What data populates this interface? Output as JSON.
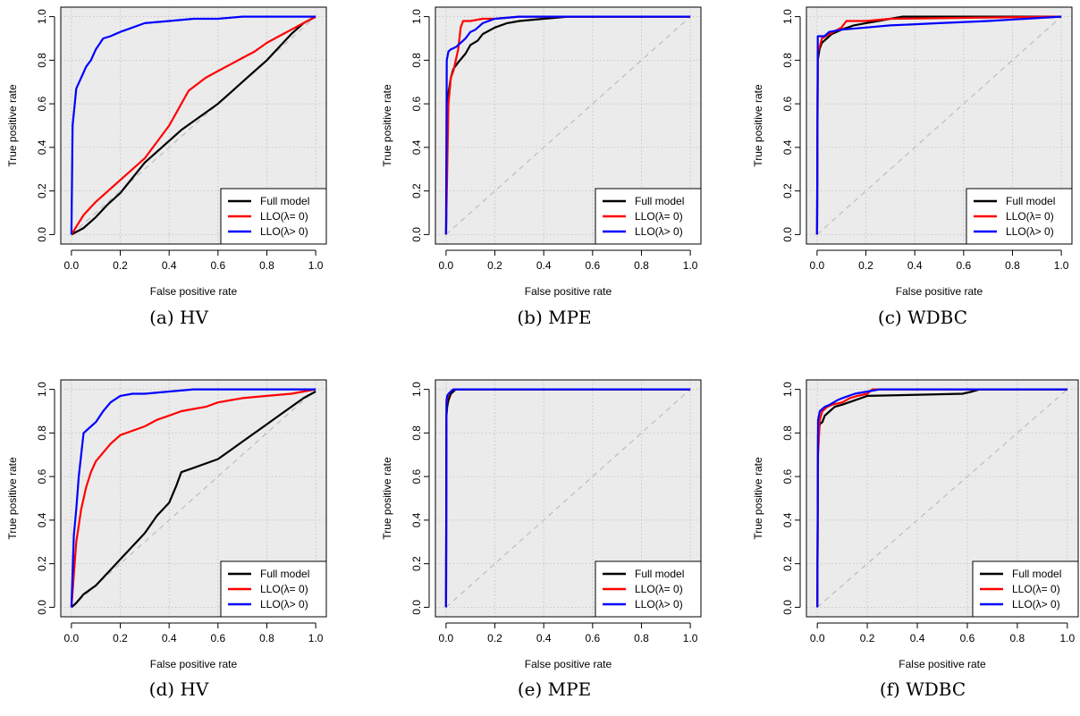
{
  "colors": {
    "panel_bg": "#ebebeb",
    "grid": "#bdbdbd",
    "diagonal": "#bdbdbd",
    "full_model": "#000000",
    "llo_zero": "#ff0000",
    "llo_pos": "#0000ff"
  },
  "chart_data": [
    {
      "type": "line",
      "caption": "(a) HV",
      "xlabel": "False positive rate",
      "ylabel": "True positive rate",
      "xlim": [
        0,
        1
      ],
      "ylim": [
        0,
        1
      ],
      "ticks": [
        "0.0",
        "0.2",
        "0.4",
        "0.6",
        "0.8",
        "1.0"
      ],
      "grid": true,
      "legend_position": "bottom-right",
      "series": [
        {
          "name": "Full model",
          "color": "#000000",
          "x": [
            0,
            0.05,
            0.1,
            0.15,
            0.2,
            0.25,
            0.3,
            0.35,
            0.4,
            0.45,
            0.5,
            0.55,
            0.6,
            0.65,
            0.7,
            0.75,
            0.8,
            0.85,
            0.9,
            0.95,
            1
          ],
          "y": [
            0,
            0.03,
            0.08,
            0.14,
            0.19,
            0.26,
            0.33,
            0.38,
            0.43,
            0.48,
            0.52,
            0.56,
            0.6,
            0.65,
            0.7,
            0.75,
            0.8,
            0.86,
            0.92,
            0.97,
            1
          ]
        },
        {
          "name": "LLO(λ= 0)",
          "color": "#ff0000",
          "x": [
            0,
            0.05,
            0.1,
            0.15,
            0.2,
            0.3,
            0.4,
            0.48,
            0.55,
            0.6,
            0.65,
            0.7,
            0.75,
            0.8,
            0.85,
            0.9,
            0.95,
            1
          ],
          "y": [
            0,
            0.09,
            0.15,
            0.2,
            0.25,
            0.35,
            0.5,
            0.66,
            0.72,
            0.75,
            0.78,
            0.81,
            0.84,
            0.88,
            0.91,
            0.94,
            0.97,
            1
          ]
        },
        {
          "name": "LLO(λ> 0)",
          "color": "#0000ff",
          "x": [
            0,
            0.005,
            0.02,
            0.04,
            0.06,
            0.08,
            0.1,
            0.13,
            0.16,
            0.2,
            0.25,
            0.3,
            0.4,
            0.5,
            0.6,
            0.7,
            0.8,
            1
          ],
          "y": [
            0,
            0.5,
            0.67,
            0.72,
            0.77,
            0.8,
            0.85,
            0.9,
            0.91,
            0.93,
            0.95,
            0.97,
            0.98,
            0.99,
            0.99,
            1,
            1,
            1
          ]
        }
      ]
    },
    {
      "type": "line",
      "caption": "(b) MPE",
      "xlabel": "False positive rate",
      "ylabel": "True positive rate",
      "xlim": [
        0,
        1
      ],
      "ylim": [
        0,
        1
      ],
      "ticks": [
        "0.0",
        "0.2",
        "0.4",
        "0.6",
        "0.8",
        "1.0"
      ],
      "grid": true,
      "legend_position": "bottom-right",
      "series": [
        {
          "name": "Full model",
          "color": "#000000",
          "x": [
            0,
            0.005,
            0.01,
            0.02,
            0.03,
            0.05,
            0.08,
            0.1,
            0.13,
            0.15,
            0.2,
            0.25,
            0.3,
            0.4,
            0.5,
            0.6,
            1
          ],
          "y": [
            0,
            0.5,
            0.65,
            0.72,
            0.76,
            0.79,
            0.83,
            0.87,
            0.89,
            0.92,
            0.95,
            0.97,
            0.98,
            0.99,
            1,
            1,
            1
          ]
        },
        {
          "name": "LLO(λ= 0)",
          "color": "#ff0000",
          "x": [
            0,
            0.005,
            0.01,
            0.02,
            0.03,
            0.04,
            0.05,
            0.06,
            0.07,
            0.1,
            0.15,
            0.2,
            0.3,
            1
          ],
          "y": [
            0,
            0.3,
            0.6,
            0.72,
            0.75,
            0.8,
            0.85,
            0.95,
            0.98,
            0.98,
            0.99,
            0.99,
            1,
            1
          ]
        },
        {
          "name": "LLO(λ> 0)",
          "color": "#0000ff",
          "x": [
            0,
            0.003,
            0.01,
            0.02,
            0.04,
            0.06,
            0.08,
            0.1,
            0.12,
            0.15,
            0.2,
            0.3,
            1
          ],
          "y": [
            0,
            0.8,
            0.84,
            0.85,
            0.86,
            0.88,
            0.9,
            0.93,
            0.94,
            0.97,
            0.99,
            1,
            1
          ]
        }
      ]
    },
    {
      "type": "line",
      "caption": "(c) WDBC",
      "xlabel": "False positive rate",
      "ylabel": "True positive rate",
      "xlim": [
        0,
        1
      ],
      "ylim": [
        0,
        1
      ],
      "ticks": [
        "0.0",
        "0.2",
        "0.4",
        "0.6",
        "0.8",
        "1.0"
      ],
      "grid": true,
      "legend_position": "bottom-right",
      "series": [
        {
          "name": "Full model",
          "color": "#000000",
          "x": [
            0,
            0.003,
            0.01,
            0.02,
            0.04,
            0.06,
            0.1,
            0.15,
            0.2,
            0.25,
            0.3,
            0.35,
            1
          ],
          "y": [
            0,
            0.8,
            0.85,
            0.88,
            0.9,
            0.92,
            0.94,
            0.96,
            0.97,
            0.98,
            0.99,
            1,
            1
          ]
        },
        {
          "name": "LLO(λ= 0)",
          "color": "#ff0000",
          "x": [
            0,
            0.003,
            0.01,
            0.02,
            0.05,
            0.1,
            0.12,
            0.2,
            0.3,
            1
          ],
          "y": [
            0,
            0.84,
            0.86,
            0.9,
            0.92,
            0.95,
            0.98,
            0.98,
            0.99,
            1
          ]
        },
        {
          "name": "LLO(λ> 0)",
          "color": "#0000ff",
          "x": [
            0,
            0.003,
            0.03,
            0.05,
            0.1,
            0.2,
            0.3,
            0.5,
            0.7,
            1
          ],
          "y": [
            0,
            0.91,
            0.91,
            0.93,
            0.94,
            0.95,
            0.96,
            0.97,
            0.98,
            1
          ]
        }
      ]
    },
    {
      "type": "line",
      "caption": "(d) HV",
      "xlabel": "False positive rate",
      "ylabel": "True positive rate",
      "xlim": [
        0,
        1
      ],
      "ylim": [
        0,
        1
      ],
      "ticks": [
        "0.0",
        "0.2",
        "0.4",
        "0.6",
        "0.8",
        "1.0"
      ],
      "grid": true,
      "legend_position": "bottom-right",
      "series": [
        {
          "name": "Full model",
          "color": "#000000",
          "x": [
            0,
            0.02,
            0.05,
            0.1,
            0.15,
            0.2,
            0.25,
            0.3,
            0.35,
            0.4,
            0.43,
            0.45,
            0.5,
            0.55,
            0.6,
            0.65,
            0.7,
            0.75,
            0.8,
            0.85,
            0.9,
            0.95,
            1
          ],
          "y": [
            0,
            0.02,
            0.06,
            0.1,
            0.16,
            0.22,
            0.28,
            0.34,
            0.42,
            0.48,
            0.56,
            0.62,
            0.64,
            0.66,
            0.68,
            0.72,
            0.76,
            0.8,
            0.84,
            0.88,
            0.92,
            0.96,
            0.99
          ]
        },
        {
          "name": "LLO(λ= 0)",
          "color": "#ff0000",
          "x": [
            0,
            0.01,
            0.02,
            0.04,
            0.06,
            0.08,
            0.1,
            0.13,
            0.16,
            0.2,
            0.25,
            0.3,
            0.35,
            0.4,
            0.45,
            0.5,
            0.55,
            0.6,
            0.7,
            0.8,
            0.9,
            0.95,
            1
          ],
          "y": [
            0,
            0.15,
            0.3,
            0.45,
            0.55,
            0.62,
            0.67,
            0.71,
            0.75,
            0.79,
            0.81,
            0.83,
            0.86,
            0.88,
            0.9,
            0.91,
            0.92,
            0.94,
            0.96,
            0.97,
            0.98,
            0.99,
            1
          ]
        },
        {
          "name": "LLO(λ> 0)",
          "color": "#0000ff",
          "x": [
            0,
            0.01,
            0.02,
            0.03,
            0.04,
            0.05,
            0.07,
            0.1,
            0.13,
            0.16,
            0.2,
            0.25,
            0.3,
            0.4,
            0.5,
            0.6,
            0.8,
            1
          ],
          "y": [
            0,
            0.33,
            0.45,
            0.6,
            0.7,
            0.8,
            0.82,
            0.85,
            0.9,
            0.94,
            0.97,
            0.98,
            0.98,
            0.99,
            1,
            1,
            1,
            1
          ]
        }
      ]
    },
    {
      "type": "line",
      "caption": "(e) MPE",
      "xlabel": "False positive rate",
      "ylabel": "True positive rate",
      "xlim": [
        0,
        1
      ],
      "ylim": [
        0,
        1
      ],
      "ticks": [
        "0.0",
        "0.2",
        "0.4",
        "0.6",
        "0.8",
        "1.0"
      ],
      "grid": true,
      "legend_position": "bottom-right",
      "series": [
        {
          "name": "Full model",
          "color": "#000000",
          "x": [
            0,
            0.002,
            0.005,
            0.01,
            0.02,
            0.03,
            0.04,
            1
          ],
          "y": [
            0,
            0.88,
            0.92,
            0.95,
            0.98,
            0.99,
            1,
            1
          ]
        },
        {
          "name": "LLO(λ= 0)",
          "color": "#ff0000",
          "x": [
            0,
            0.002,
            0.005,
            0.01,
            0.02,
            0.03,
            1
          ],
          "y": [
            0,
            0.93,
            0.96,
            0.98,
            0.99,
            1,
            1
          ]
        },
        {
          "name": "LLO(λ> 0)",
          "color": "#0000ff",
          "x": [
            0,
            0.002,
            0.005,
            0.01,
            0.02,
            0.03,
            1
          ],
          "y": [
            0,
            0.95,
            0.97,
            0.98,
            0.99,
            1,
            1
          ]
        }
      ]
    },
    {
      "type": "line",
      "caption": "(f) WDBC",
      "xlabel": "False positive rate",
      "ylabel": "True positive rate",
      "xlim": [
        0,
        1
      ],
      "ylim": [
        0,
        1
      ],
      "ticks": [
        "0.0",
        "0.2",
        "0.4",
        "0.6",
        "0.8",
        "1.0"
      ],
      "grid": true,
      "legend_position": "bottom-right",
      "series": [
        {
          "name": "Full model",
          "color": "#000000",
          "x": [
            0,
            0.003,
            0.01,
            0.02,
            0.03,
            0.05,
            0.07,
            0.1,
            0.15,
            0.2,
            0.58,
            0.62,
            0.65,
            0.7,
            1
          ],
          "y": [
            0,
            0.8,
            0.84,
            0.85,
            0.88,
            0.9,
            0.92,
            0.93,
            0.95,
            0.97,
            0.98,
            0.99,
            1,
            1,
            1
          ]
        },
        {
          "name": "LLO(λ= 0)",
          "color": "#ff0000",
          "x": [
            0,
            0.003,
            0.01,
            0.02,
            0.04,
            0.06,
            0.1,
            0.13,
            0.16,
            0.2,
            0.22,
            1
          ],
          "y": [
            0,
            0.7,
            0.86,
            0.9,
            0.92,
            0.93,
            0.94,
            0.96,
            0.97,
            0.98,
            1,
            1
          ]
        },
        {
          "name": "LLO(λ> 0)",
          "color": "#0000ff",
          "x": [
            0,
            0.003,
            0.01,
            0.02,
            0.03,
            0.05,
            0.08,
            0.1,
            0.15,
            0.2,
            0.25,
            1
          ],
          "y": [
            0,
            0.86,
            0.9,
            0.91,
            0.92,
            0.93,
            0.95,
            0.96,
            0.98,
            0.99,
            1,
            1
          ]
        }
      ]
    }
  ]
}
